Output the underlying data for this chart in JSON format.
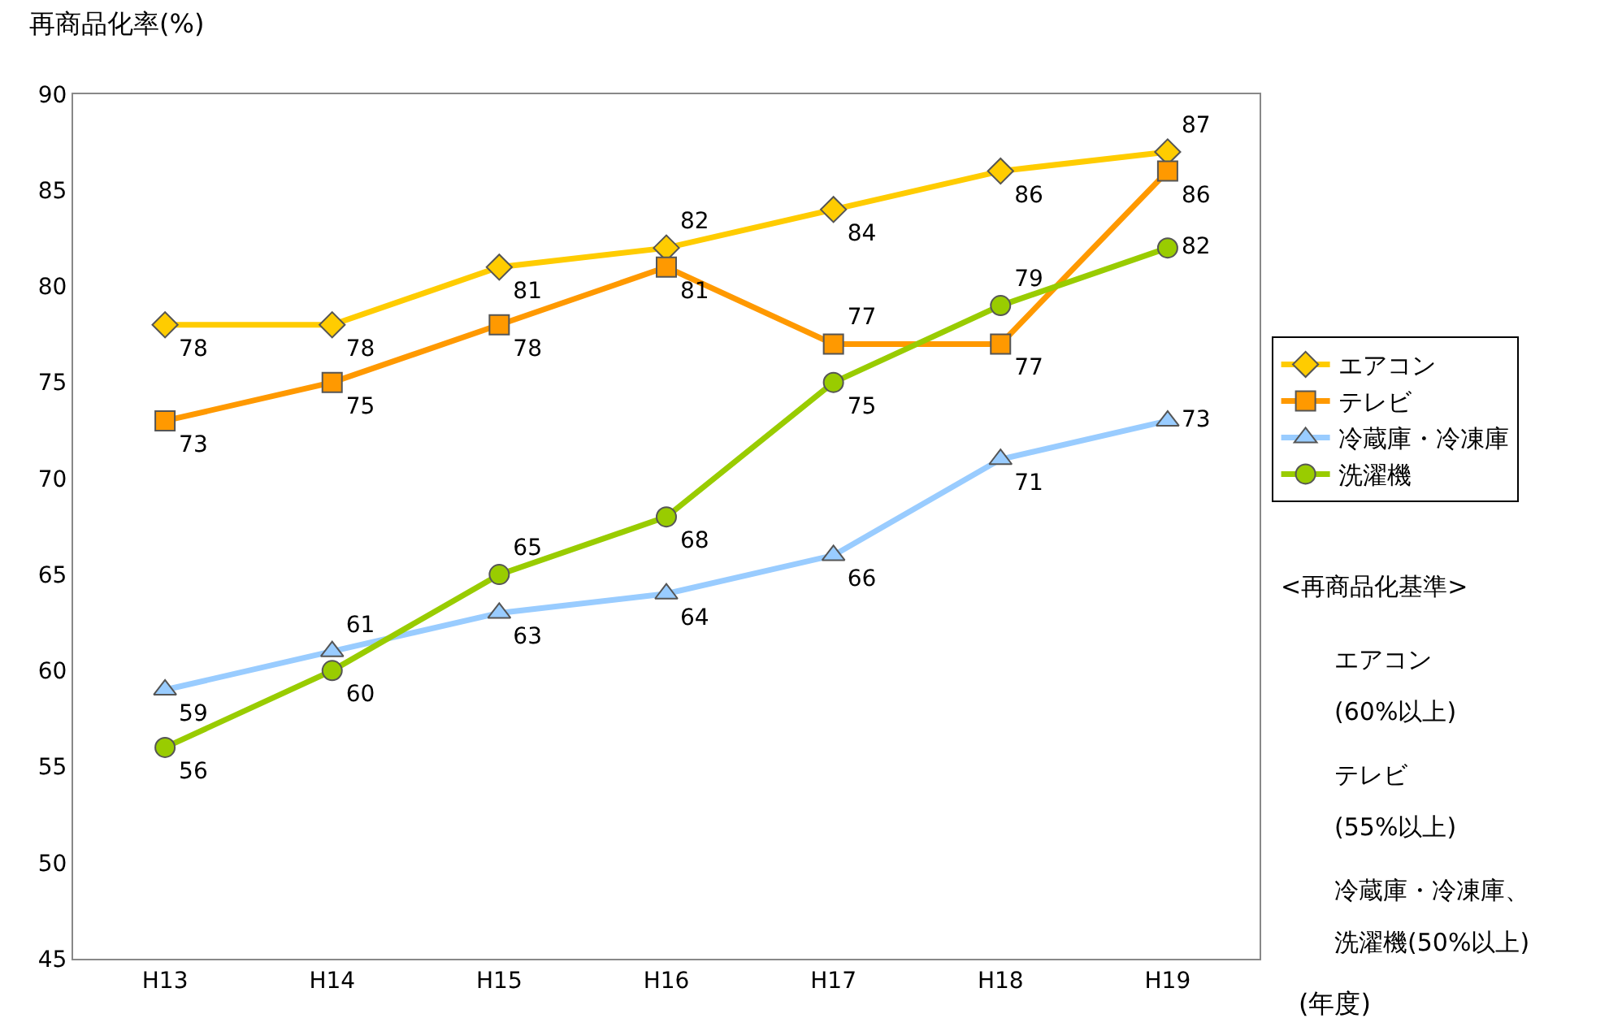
{
  "chart_data": {
    "type": "line",
    "ylabel": "再商品化率(%)",
    "xlabel": "(年度)",
    "categories": [
      "H13",
      "H14",
      "H15",
      "H16",
      "H17",
      "H18",
      "H19"
    ],
    "series": [
      {
        "name": "エアコン",
        "color": "#ffcc00",
        "marker": "diamond",
        "values": [
          78,
          78,
          81,
          82,
          84,
          86,
          87
        ]
      },
      {
        "name": "テレビ",
        "color": "#ff9900",
        "marker": "square",
        "values": [
          73,
          75,
          78,
          81,
          77,
          77,
          86
        ]
      },
      {
        "name": "冷蔵庫・冷凍庫",
        "color": "#99ccff",
        "marker": "triangle",
        "values": [
          59,
          61,
          63,
          64,
          66,
          71,
          73
        ]
      },
      {
        "name": "洗濯機",
        "color": "#99cc00",
        "marker": "circle",
        "values": [
          56,
          60,
          65,
          68,
          75,
          79,
          82
        ]
      }
    ],
    "ylim": [
      45,
      90
    ],
    "yticks": [
      45,
      50,
      55,
      60,
      65,
      70,
      75,
      80,
      85,
      90
    ],
    "data_labels": true,
    "legend": "right",
    "annotations": [
      "<再商品化基準>",
      "エアコン",
      "(60%以上)",
      "テレビ",
      "(55%以上)",
      "冷蔵庫・冷凍庫、",
      "洗濯機(50%以上)"
    ]
  }
}
